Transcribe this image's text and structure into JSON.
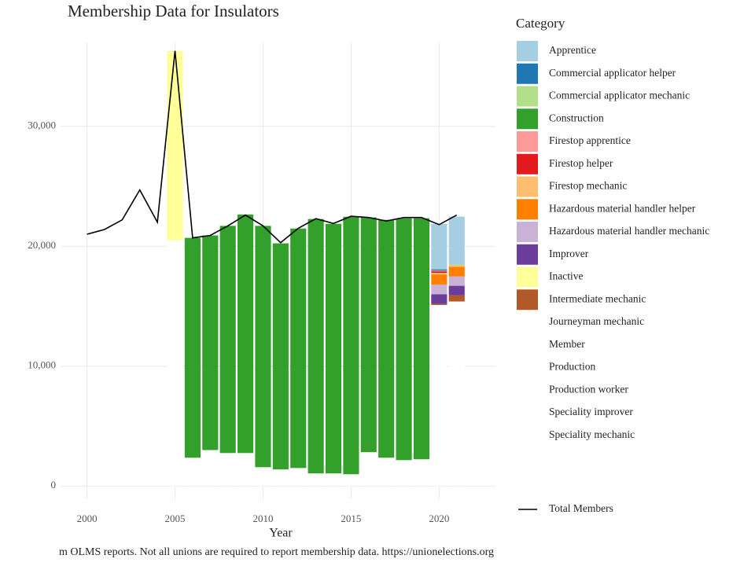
{
  "chart_data": {
    "type": "bar",
    "stacked": true,
    "title": "Membership Data for Insulators",
    "x_label": "Year",
    "caption": "m OLMS reports. Not all unions are required to report membership data. https://unionelections.org",
    "legend_title": "Category",
    "legend": "right",
    "grid": true,
    "x": [
      2005,
      2006,
      2007,
      2008,
      2009,
      2010,
      2011,
      2012,
      2013,
      2014,
      2015,
      2016,
      2017,
      2018,
      2019,
      2020,
      2021
    ],
    "xlim": [
      1998.5,
      2023.2
    ],
    "xticks": [
      2000,
      2005,
      2010,
      2015,
      2020
    ],
    "ylim": [
      -1100,
      37000
    ],
    "yticks": [
      0,
      {
        "value": 10000,
        "label": "10,000"
      },
      {
        "value": 20000,
        "label": "20,000"
      },
      {
        "value": 30000,
        "label": "30,000"
      }
    ],
    "series": [
      {
        "name": "Apprentice",
        "color": "#a6cee3",
        "values": [
          null,
          null,
          null,
          null,
          null,
          null,
          null,
          null,
          null,
          null,
          null,
          null,
          null,
          null,
          null,
          3800,
          4000
        ]
      },
      {
        "name": "Commercial applicator helper",
        "color": "#1f78b4",
        "values": [
          null,
          null,
          null,
          null,
          null,
          null,
          null,
          null,
          null,
          null,
          null,
          null,
          null,
          null,
          null,
          100,
          null
        ]
      },
      {
        "name": "Commercial applicator mechanic",
        "color": "#b2df8a",
        "values": [
          null,
          null,
          null,
          null,
          null,
          null,
          null,
          null,
          null,
          null,
          null,
          null,
          null,
          null,
          null,
          null,
          60
        ]
      },
      {
        "name": "Construction",
        "color": "#33a02c",
        "values": [
          null,
          18340,
          17900,
          18950,
          19900,
          20130,
          18860,
          19980,
          21220,
          20820,
          21480,
          19580,
          19840,
          20170,
          20100,
          null,
          null
        ]
      },
      {
        "name": "Firestop apprentice",
        "color": "#fb9a99",
        "values": [
          null,
          null,
          null,
          null,
          null,
          null,
          null,
          null,
          null,
          null,
          null,
          null,
          null,
          null,
          null,
          60,
          null
        ]
      },
      {
        "name": "Firestop helper",
        "color": "#e31a1c",
        "values": [
          null,
          null,
          null,
          null,
          null,
          null,
          null,
          null,
          null,
          null,
          null,
          null,
          null,
          null,
          null,
          130,
          null
        ]
      },
      {
        "name": "Firestop mechanic",
        "color": "#fdbf6f",
        "values": [
          null,
          null,
          null,
          null,
          null,
          null,
          null,
          null,
          null,
          null,
          null,
          null,
          null,
          null,
          null,
          130,
          130
        ]
      },
      {
        "name": "Hazardous material handler helper",
        "color": "#ff7f00",
        "values": [
          null,
          null,
          null,
          null,
          null,
          null,
          null,
          null,
          null,
          null,
          null,
          null,
          null,
          null,
          null,
          850,
          790
        ]
      },
      {
        "name": "Hazardous material handler mechanic",
        "color": "#cab2d6",
        "values": [
          null,
          null,
          null,
          null,
          null,
          null,
          null,
          null,
          null,
          null,
          null,
          null,
          null,
          null,
          null,
          800,
          790
        ]
      },
      {
        "name": "Improver",
        "color": "#6a3d9a",
        "values": [
          null,
          null,
          null,
          null,
          null,
          null,
          null,
          null,
          null,
          null,
          null,
          null,
          null,
          null,
          null,
          800,
          790
        ]
      },
      {
        "name": "Inactive",
        "color": "#ffff99",
        "values": [
          15780,
          null,
          null,
          null,
          null,
          null,
          null,
          null,
          null,
          null,
          null,
          null,
          null,
          null,
          null,
          null,
          null
        ]
      },
      {
        "name": "Intermediate mechanic",
        "color": "#b15928",
        "values": [
          null,
          null,
          null,
          null,
          null,
          null,
          null,
          null,
          null,
          null,
          null,
          null,
          null,
          null,
          null,
          100,
          520
        ]
      },
      {
        "name": "Journeyman mechanic",
        "color": "#ffffff",
        "values": [
          null,
          2360,
          3000,
          2750,
          2750,
          1570,
          1380,
          1500,
          1050,
          1050,
          980,
          2820,
          2360,
          2160,
          2230,
          15100,
          15390
        ]
      },
      {
        "name": "Member",
        "color": "#ffffff",
        "values": [
          20500,
          null,
          null,
          null,
          null,
          null,
          null,
          null,
          null,
          null,
          null,
          null,
          null,
          null,
          null,
          null,
          null
        ]
      },
      {
        "name": "Production",
        "color": "#ffffff",
        "values": [
          null,
          null,
          null,
          null,
          null,
          null,
          null,
          null,
          null,
          null,
          null,
          null,
          null,
          null,
          null,
          null,
          null
        ]
      },
      {
        "name": "Production worker",
        "color": "#ffffff",
        "values": [
          null,
          null,
          null,
          null,
          null,
          null,
          null,
          null,
          null,
          null,
          null,
          null,
          null,
          null,
          null,
          null,
          null
        ]
      },
      {
        "name": "Speciality improver",
        "color": "#ffffff",
        "values": [
          null,
          null,
          null,
          null,
          null,
          null,
          null,
          null,
          null,
          null,
          null,
          null,
          null,
          null,
          null,
          null,
          null
        ]
      },
      {
        "name": "Speciality mechanic",
        "color": "#ffffff",
        "values": [
          null,
          null,
          null,
          null,
          null,
          null,
          null,
          null,
          null,
          null,
          null,
          null,
          null,
          null,
          null,
          null,
          null
        ]
      }
    ],
    "line": {
      "name": "Total Members",
      "color": "#000000",
      "x": [
        2000,
        2001,
        2002,
        2003,
        2004,
        2005,
        2006,
        2007,
        2008,
        2009,
        2010,
        2011,
        2012,
        2013,
        2014,
        2015,
        2016,
        2017,
        2018,
        2019,
        2020,
        2021
      ],
      "values": [
        21000,
        21400,
        22200,
        24700,
        22000,
        36300,
        20700,
        20900,
        21700,
        22600,
        21700,
        20300,
        21500,
        22300,
        21900,
        22500,
        22400,
        22100,
        22400,
        22400,
        21800,
        22600
      ]
    }
  }
}
